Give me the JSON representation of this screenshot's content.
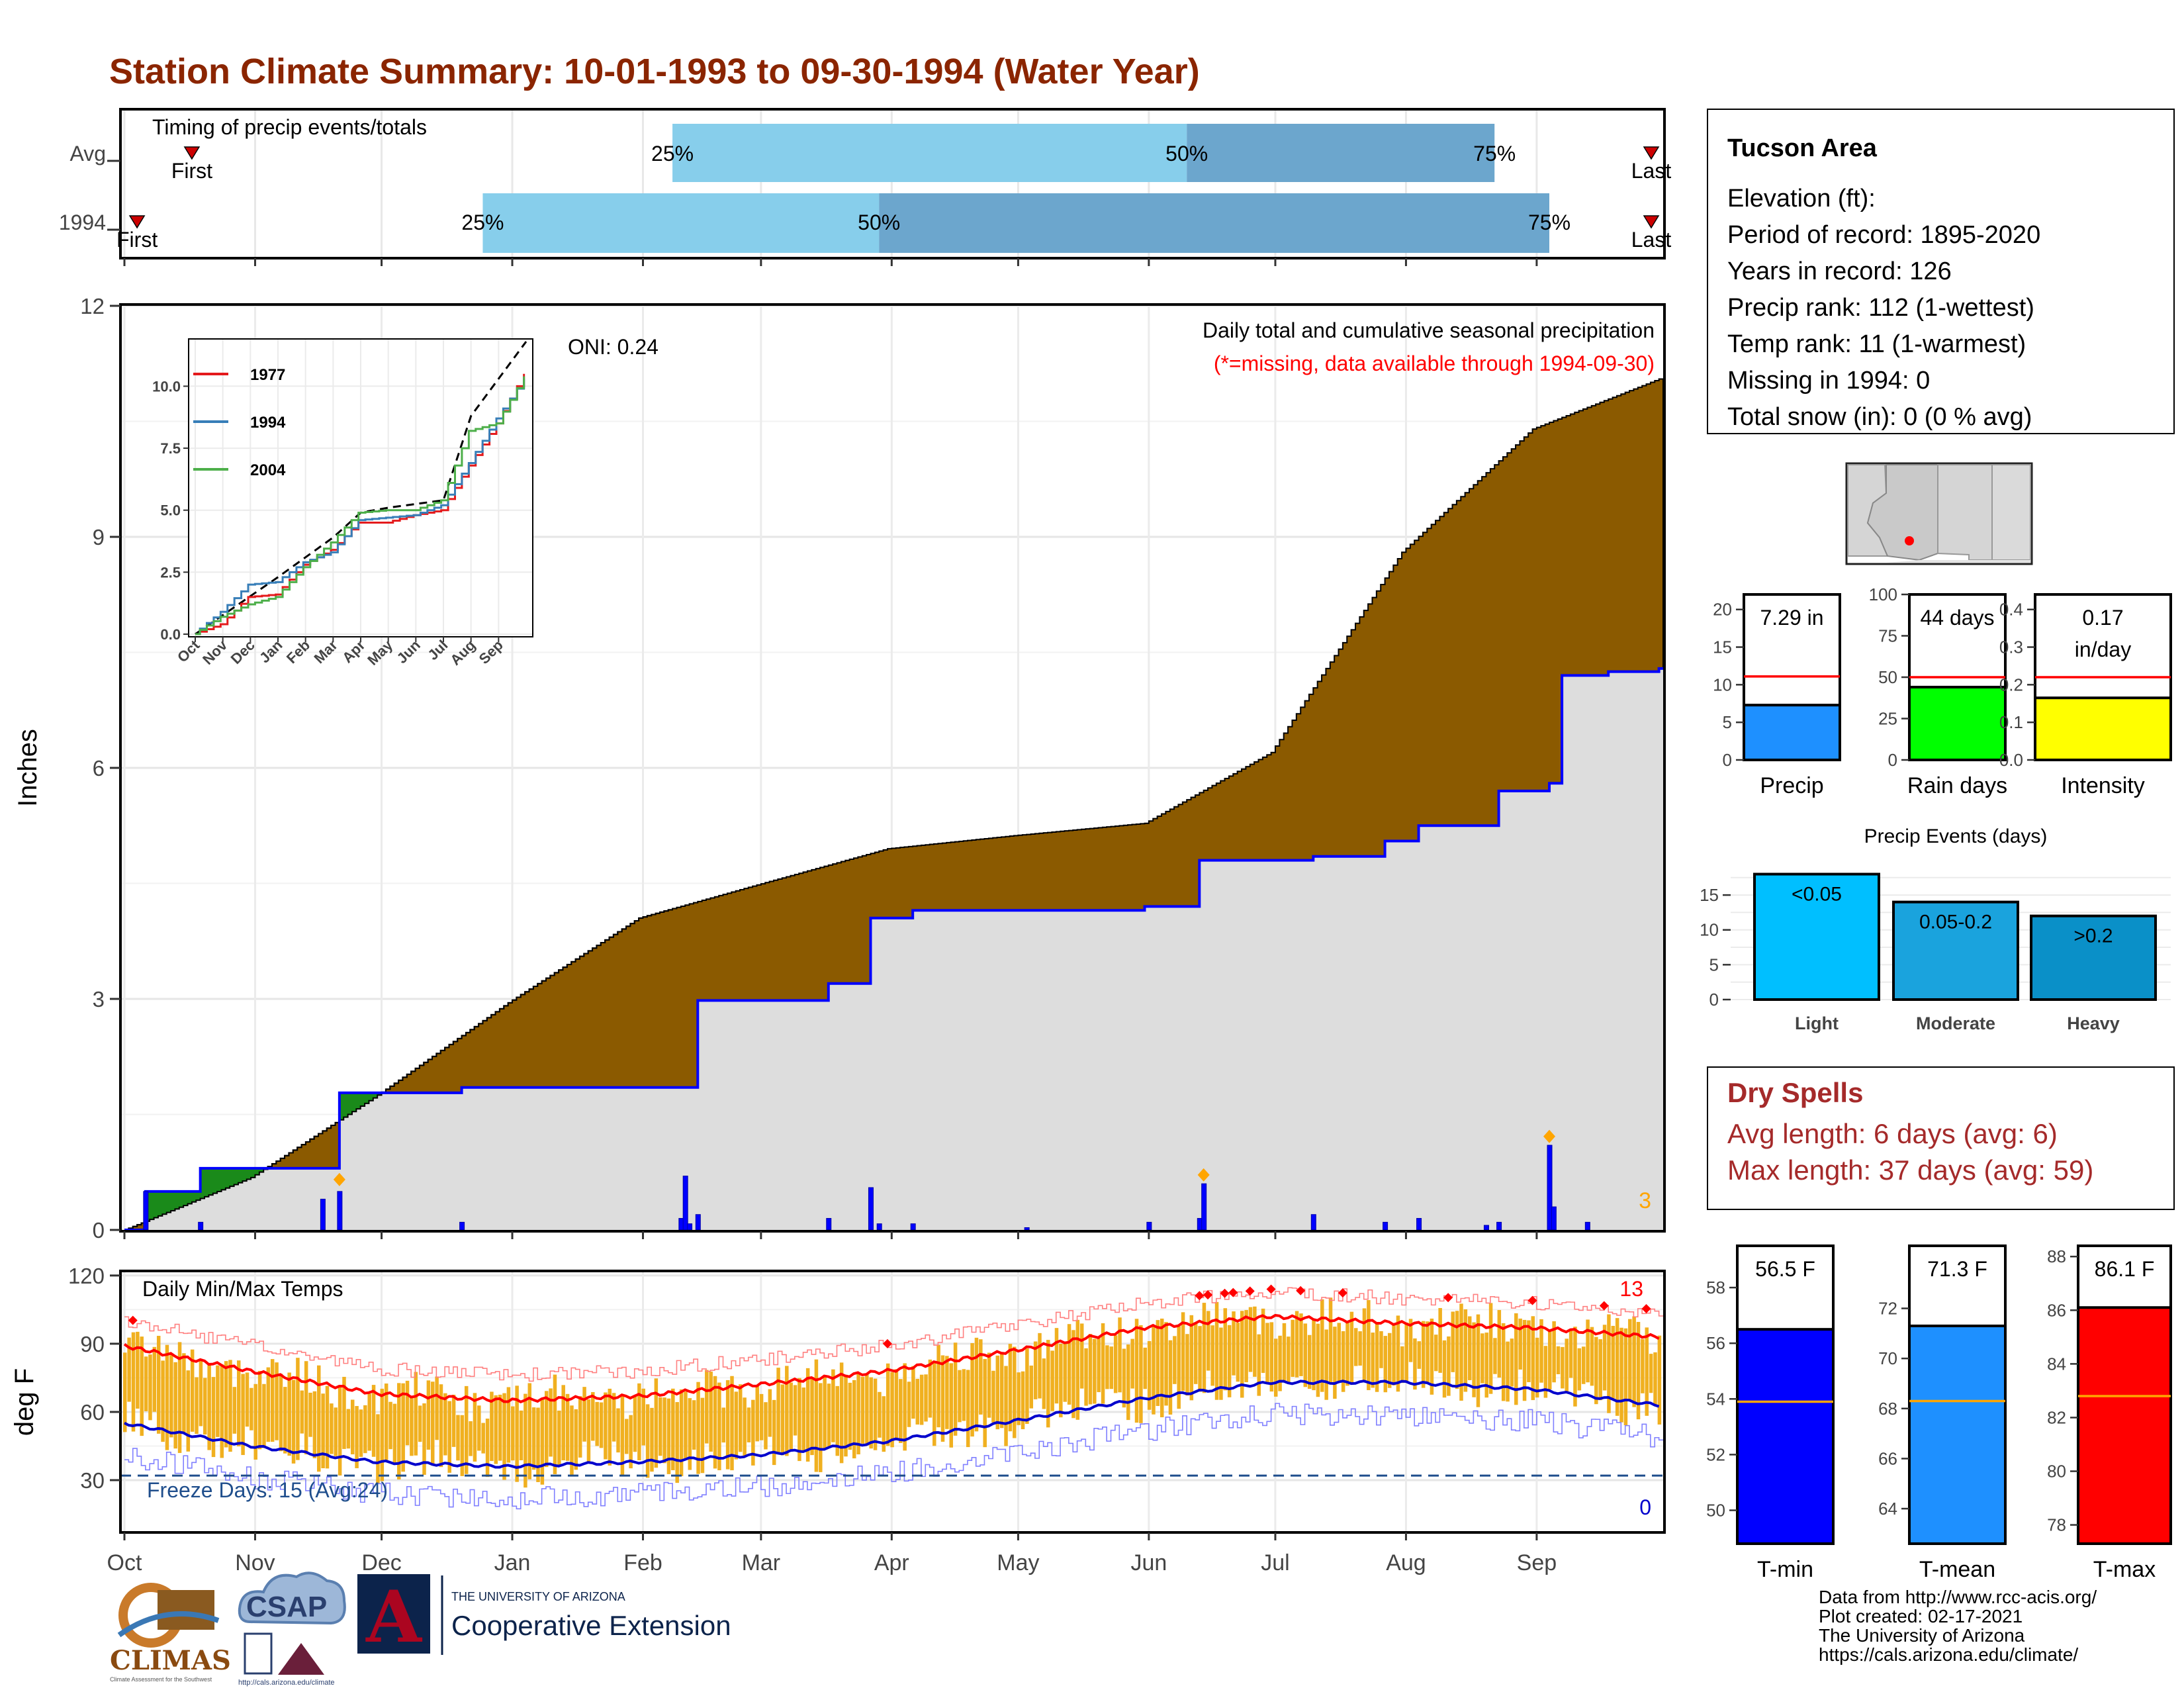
{
  "title": "Station Climate Summary: 10-01-1993 to 09-30-1994 (Water Year)",
  "colors": {
    "title": "#8B2500",
    "avg_accum": "#8B5A00",
    "cur_accum": "#DDDDDD",
    "deficit": "#1A8A1A",
    "bars": "#0000FF",
    "quartile_light": "#87CEEB",
    "quartile_dark": "#6CA6CD",
    "temp_fill": "#F0B020",
    "tmax_avg": "#FF0000",
    "tmin_avg": "#0000CC",
    "dry_spells": "#A52A2A"
  },
  "timing": {
    "label": "Timing of precip events/totals",
    "rows": [
      {
        "name": "Avg",
        "first_label": "First",
        "last_label": "Last",
        "first_day": 17,
        "last_day": 366,
        "q25_label": "25%",
        "q50_label": "50%",
        "q75_label": "75%",
        "q25": 131,
        "q50": 253,
        "q75": 326
      },
      {
        "name": "1994",
        "first_label": "First",
        "last_label": "Last",
        "first_day": 4,
        "last_day": 372,
        "q25_label": "25%",
        "q50_label": "50%",
        "q75_label": "75%",
        "q25": 86,
        "q50": 180,
        "q75": 339
      }
    ]
  },
  "precip_panel": {
    "ylabel": "Inches",
    "yticks": [
      "0",
      "3",
      "6",
      "9",
      "12"
    ],
    "caption1": "Daily total and cumulative seasonal precipitation",
    "caption2": "(*=missing, data available through 1994-09-30)",
    "oni": "ONI: 0.24",
    "count_label": "3"
  },
  "inset": {
    "yticks": [
      "0.0",
      "2.5",
      "5.0",
      "7.5",
      "10.0"
    ],
    "xticks": [
      "Oct",
      "Nov",
      "Dec",
      "Jan",
      "Feb",
      "Mar",
      "Apr",
      "May",
      "Jun",
      "Jul",
      "Aug",
      "Sep"
    ],
    "legend": [
      {
        "name": "1977",
        "color": "#E41A1C"
      },
      {
        "name": "1994",
        "color": "#377EB8"
      },
      {
        "name": "2004",
        "color": "#4DAF4A"
      }
    ]
  },
  "temp_panel": {
    "ylabel": "deg F",
    "title": "Daily Min/Max Temps",
    "yticks": [
      "30",
      "60",
      "90",
      "120"
    ],
    "freeze_label": "Freeze Days: 15 (Avg:24)",
    "hot_count": "13",
    "cold_count": "0"
  },
  "months": [
    "Oct",
    "Nov",
    "Dec",
    "Jan",
    "Feb",
    "Mar",
    "Apr",
    "May",
    "Jun",
    "Jul",
    "Aug",
    "Sep"
  ],
  "info_box": {
    "area": "Tucson Area",
    "lines": [
      "Elevation (ft):",
      "Period of record: 1895-2020",
      "Years in record: 126",
      "Precip rank: 112 (1-wettest)",
      "Temp rank: 11 (1-warmest)",
      "Missing in 1994: 0",
      "Total snow (in): 0 (0 % avg)"
    ]
  },
  "summary_bars": [
    {
      "label": "Precip",
      "value_text": "7.29 in",
      "value": 7.29,
      "avg": 11.1,
      "ymax": 22,
      "ticks": [
        "0",
        "5",
        "10",
        "15",
        "20"
      ],
      "color": "#1E90FF"
    },
    {
      "label": "Rain days",
      "value_text": "44 days",
      "value": 44,
      "avg": 50,
      "ymax": 100,
      "ticks": [
        "0",
        "25",
        "50",
        "75",
        "100"
      ],
      "color": "#00FF00"
    },
    {
      "label": "Intensity",
      "value_text": "0.17",
      "value_text2": "in/day",
      "value": 0.165,
      "avg": 0.22,
      "ymax": 0.44,
      "ticks": [
        "0.0",
        "0.1",
        "0.2",
        "0.3",
        "0.4"
      ],
      "color": "#FFFF00"
    }
  ],
  "precip_events": {
    "title": "Precip Events (days)",
    "ticks": [
      "0",
      "5",
      "10",
      "15"
    ],
    "bars": [
      {
        "category": "Light",
        "label": "<0.05",
        "value": 18,
        "color": "#00BFFF"
      },
      {
        "category": "Moderate",
        "label": "0.05-0.2",
        "value": 14,
        "color": "#1AA3DD"
      },
      {
        "category": "Heavy",
        "label": ">0.2",
        "value": 12,
        "color": "#0A90C8"
      }
    ]
  },
  "dry_spells": {
    "title": "Dry Spells",
    "avg_line": "Avg length: 6 days (avg: 6)",
    "max_line": "Max length: 37 days (avg: 59)"
  },
  "temp_bars": [
    {
      "label": "T-min",
      "value_text": "56.5 F",
      "value": 56.5,
      "avg": 53.9,
      "ymin": 48.8,
      "ymax": 59.5,
      "ticks": [
        "50",
        "52",
        "54",
        "56",
        "58"
      ],
      "color": "#0000FF"
    },
    {
      "label": "T-mean",
      "value_text": "71.3 F",
      "value": 71.3,
      "avg": 68.3,
      "ymin": 62.6,
      "ymax": 74.5,
      "ticks": [
        "64",
        "66",
        "68",
        "70",
        "72"
      ],
      "color": "#1E90FF"
    },
    {
      "label": "T-max",
      "value_text": "86.1 F",
      "value": 86.1,
      "avg": 82.8,
      "ymin": 77.3,
      "ymax": 88.4,
      "ticks": [
        "78",
        "80",
        "82",
        "84",
        "86",
        "88"
      ],
      "color": "#FF0000"
    }
  ],
  "footer": {
    "lines": [
      "Data from http://www.rcc-acis.org/",
      "Plot created: 02-17-2021",
      "The University of Arizona",
      "https://cals.arizona.edu/climate/"
    ]
  },
  "logos": {
    "climas": "CLIMAS",
    "climas_sub": "Climate Assessment for the Southwest",
    "csap": "CSAP",
    "csap_url": "http://cals.arizona.edu/climate",
    "ua_small": "THE UNIVERSITY OF ARIZONA",
    "ua_big": "Cooperative Extension",
    "ua_letter": "A"
  },
  "chart_data": {
    "type": "area",
    "title": "Daily total and cumulative seasonal precipitation",
    "ylabel": "Inches",
    "ylim": [
      0,
      12
    ],
    "x_units": "day of water year (1 = Oct 1)",
    "avg_cumulative": {
      "x": [
        1,
        31,
        61,
        92,
        123,
        151,
        182,
        212,
        243,
        273,
        304,
        335,
        365
      ],
      "y": [
        0.0,
        0.68,
        1.75,
        2.95,
        4.05,
        4.48,
        4.95,
        5.12,
        5.28,
        6.2,
        8.8,
        10.4,
        11.05
      ]
    },
    "cur_cumulative": {
      "x": [
        1,
        6,
        19,
        48,
        52,
        61,
        81,
        133,
        137,
        168,
        178,
        188,
        243,
        256,
        283,
        300,
        308,
        327,
        339,
        342,
        353,
        365
      ],
      "y": [
        0.0,
        0.5,
        0.8,
        0.8,
        1.78,
        1.78,
        1.85,
        1.85,
        2.98,
        3.2,
        4.05,
        4.15,
        4.2,
        4.8,
        4.85,
        5.05,
        5.25,
        5.7,
        5.8,
        7.2,
        7.25,
        7.29
      ]
    },
    "daily": {
      "x": [
        6,
        19,
        48,
        52,
        81,
        133,
        134,
        135,
        137,
        168,
        178,
        180,
        188,
        215,
        244,
        256,
        257,
        283,
        300,
        308,
        324,
        327,
        339,
        340,
        348
      ],
      "y": [
        0.5,
        0.1,
        0.4,
        0.5,
        0.1,
        0.15,
        0.7,
        0.08,
        0.2,
        0.15,
        0.55,
        0.08,
        0.08,
        0.03,
        0.1,
        0.15,
        0.6,
        0.2,
        0.1,
        0.15,
        0.06,
        0.1,
        1.1,
        0.3,
        0.1
      ]
    },
    "temps": {
      "ylim": [
        7,
        122
      ],
      "tmax_avg": {
        "x": [
          1,
          31,
          61,
          92,
          123,
          151,
          182,
          212,
          243,
          273,
          304,
          335,
          365
        ],
        "y": [
          89,
          78,
          68,
          65,
          67,
          72,
          78,
          87,
          97,
          102,
          99,
          97,
          93
        ]
      },
      "tmin_avg": {
        "x": [
          1,
          31,
          61,
          92,
          123,
          151,
          182,
          212,
          243,
          273,
          304,
          335,
          365
        ],
        "y": [
          55,
          45,
          38,
          36,
          38,
          41,
          47,
          56,
          66,
          73,
          73,
          70,
          63
        ]
      },
      "freeze_threshold": 32
    },
    "inset": {
      "ylim": [
        0,
        11.8
      ],
      "max_cumulative": {
        "x": [
          0,
          3,
          5,
          6,
          7,
          9,
          10,
          12
        ],
        "y": [
          0,
          2.3,
          3.9,
          4.9,
          5.1,
          5.4,
          8.8,
          11.8
        ]
      },
      "series": [
        {
          "name": "1977",
          "x": [
            0,
            1,
            2,
            3,
            4,
            5,
            6,
            7,
            8,
            9,
            10,
            11,
            12
          ],
          "y": [
            0,
            0.4,
            1.5,
            1.6,
            2.8,
            3.4,
            4.5,
            4.5,
            4.8,
            5.0,
            6.8,
            8.5,
            10.5
          ]
        },
        {
          "name": "1994",
          "x": [
            0,
            1,
            2,
            3,
            4,
            5,
            6,
            7,
            8,
            9,
            10,
            11,
            12
          ],
          "y": [
            0,
            0.9,
            2.0,
            2.1,
            2.9,
            3.3,
            4.6,
            4.7,
            4.8,
            5.2,
            6.9,
            8.7,
            10.3
          ]
        },
        {
          "name": "2004",
          "x": [
            0,
            1,
            2,
            3,
            4,
            5,
            6,
            7,
            8,
            9,
            10,
            11,
            12
          ],
          "y": [
            0,
            0.7,
            1.2,
            1.5,
            2.7,
            3.7,
            4.9,
            5.0,
            5.0,
            5.4,
            8.2,
            8.5,
            10.4
          ]
        }
      ]
    }
  }
}
